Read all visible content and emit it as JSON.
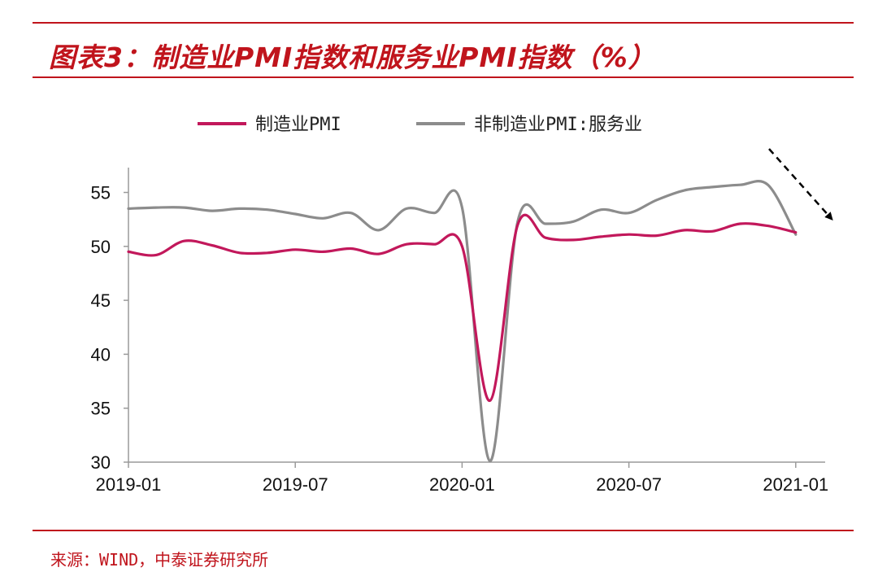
{
  "title": "图表3：制造业PMI指数和服务业PMI指数（%）",
  "source": "来源：WIND，中泰证券研究所",
  "colors": {
    "accent": "#c0141c",
    "manufacturing": "#c2185b",
    "services": "#8c8c8c"
  },
  "chart_data": {
    "type": "line",
    "x": [
      "2019-01",
      "2019-02",
      "2019-03",
      "2019-04",
      "2019-05",
      "2019-06",
      "2019-07",
      "2019-08",
      "2019-09",
      "2019-10",
      "2019-11",
      "2019-12",
      "2020-01",
      "2020-02",
      "2020-03",
      "2020-04",
      "2020-05",
      "2020-06",
      "2020-07",
      "2020-08",
      "2020-09",
      "2020-10",
      "2020-11",
      "2020-12",
      "2021-01"
    ],
    "xticks": [
      "2019-01",
      "2019-07",
      "2020-01",
      "2020-07",
      "2021-01"
    ],
    "yticks": [
      30,
      35,
      40,
      45,
      50,
      55
    ],
    "ylim": [
      30,
      57
    ],
    "xlabel": "",
    "ylabel": "",
    "grid": false,
    "legend": "top",
    "series": [
      {
        "name": "制造业PMI",
        "values": [
          49.5,
          49.2,
          50.5,
          50.1,
          49.4,
          49.4,
          49.7,
          49.5,
          49.8,
          49.3,
          50.2,
          50.2,
          50.0,
          35.7,
          52.0,
          50.8,
          50.6,
          50.9,
          51.1,
          51.0,
          51.5,
          51.4,
          52.1,
          51.9,
          51.3
        ]
      },
      {
        "name": "非制造业PMI:服务业",
        "values": [
          53.5,
          53.6,
          53.6,
          53.3,
          53.5,
          53.4,
          53.0,
          52.6,
          53.1,
          51.5,
          53.5,
          53.1,
          53.6,
          30.1,
          52.3,
          52.1,
          52.3,
          53.4,
          53.1,
          54.3,
          55.2,
          55.5,
          55.7,
          55.7,
          51.1
        ]
      }
    ],
    "annotation": "dashed-arrow-down"
  }
}
